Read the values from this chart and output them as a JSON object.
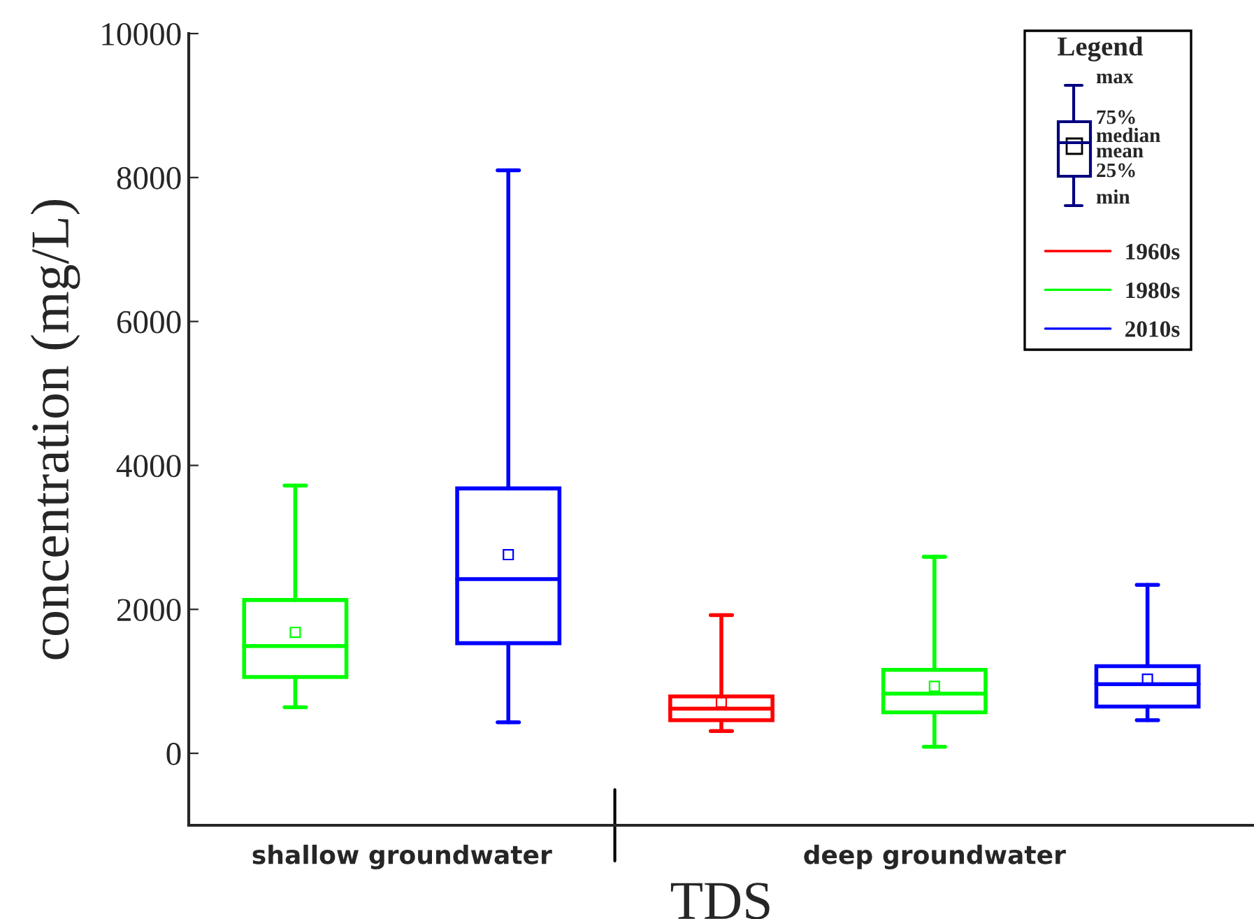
{
  "chart_data": {
    "type": "box",
    "xlabel": "TDS",
    "ylabel": "concentration (mg/L)",
    "legend_title": "Legend",
    "categories": [
      "shallow groundwater",
      "deep groundwater"
    ],
    "ylim": [
      -1000,
      10000
    ],
    "yticks": [
      0,
      2000,
      4000,
      6000,
      8000,
      10000
    ],
    "grid": false,
    "legend": "top right",
    "annotations": [
      "max",
      "75%",
      "median",
      "mean",
      "25%",
      "min"
    ],
    "series": [
      {
        "name": "1960s",
        "color": "#ff0000",
        "boxes": [
          null,
          {
            "low": 310,
            "q1": 460,
            "median": 620,
            "q3": 790,
            "high": 1920,
            "mean": 710
          }
        ]
      },
      {
        "name": "1980s",
        "color": "#00ff00",
        "boxes": [
          {
            "low": 640,
            "q1": 1060,
            "median": 1490,
            "q3": 2130,
            "high": 3720,
            "mean": 1680
          },
          {
            "low": 90,
            "q1": 570,
            "median": 830,
            "q3": 1160,
            "high": 2730,
            "mean": 930
          }
        ]
      },
      {
        "name": "2010s",
        "color": "#0000ff",
        "boxes": [
          {
            "low": 430,
            "q1": 1530,
            "median": 2420,
            "q3": 3680,
            "high": 8100,
            "mean": 2760
          },
          {
            "low": 460,
            "q1": 650,
            "median": 960,
            "q3": 1210,
            "high": 2340,
            "mean": 1030
          }
        ]
      }
    ]
  }
}
